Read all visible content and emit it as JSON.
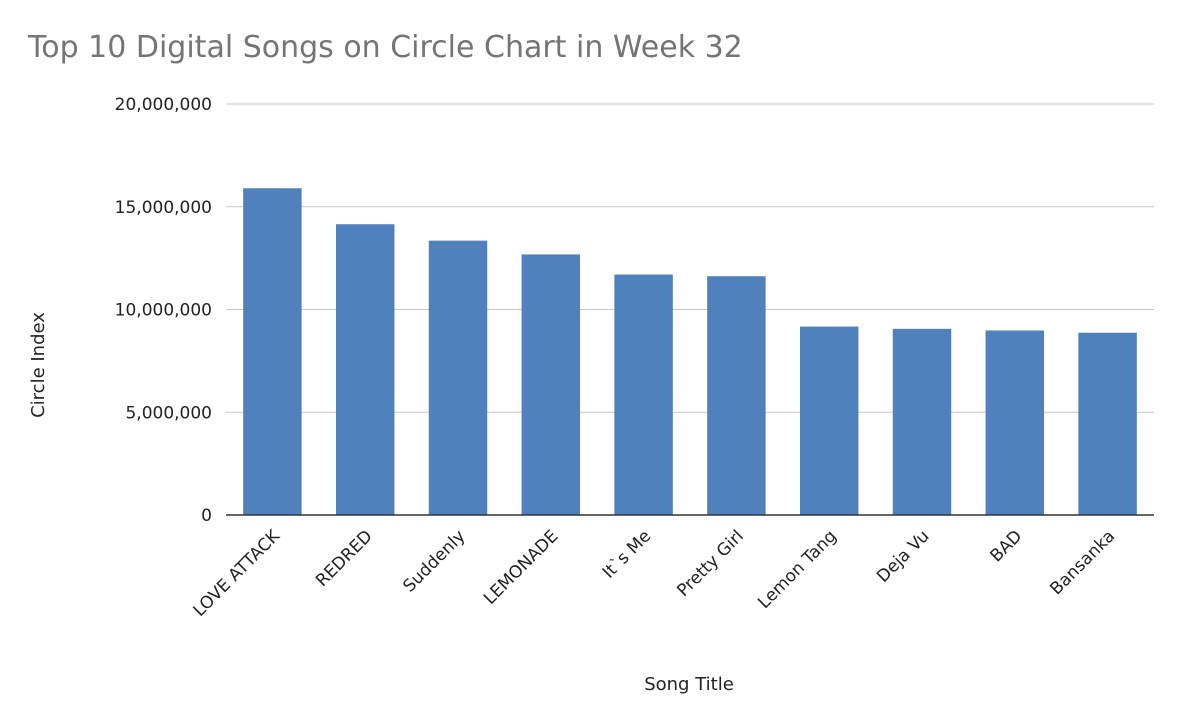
{
  "chart_data": {
    "type": "bar",
    "title": "Top 10 Digital Songs on Circle Chart in Week 32",
    "xlabel": "Song Title",
    "ylabel": "Circle Index",
    "categories": [
      "LOVE ATTACK",
      "REDRED",
      "Suddenly",
      "LEMONADE",
      "It`s Me",
      "Pretty Girl",
      "Lemon Tang",
      "Deja Vu",
      "BAD",
      "Bansanka"
    ],
    "series": [
      {
        "values": [
          15900000,
          14150000,
          13350000,
          12680000,
          11700000,
          11620000,
          9170000,
          9060000,
          8980000,
          8870000
        ]
      }
    ],
    "ylim": [
      0,
      20000000
    ],
    "yticks": [
      "0",
      "5,000,000",
      "10,000,000",
      "15,000,000",
      "20,000,000"
    ],
    "ytick_values": [
      0,
      5000000,
      10000000,
      15000000,
      20000000
    ],
    "bar_color": "#4f81bd",
    "grid": true,
    "legend": "none"
  }
}
